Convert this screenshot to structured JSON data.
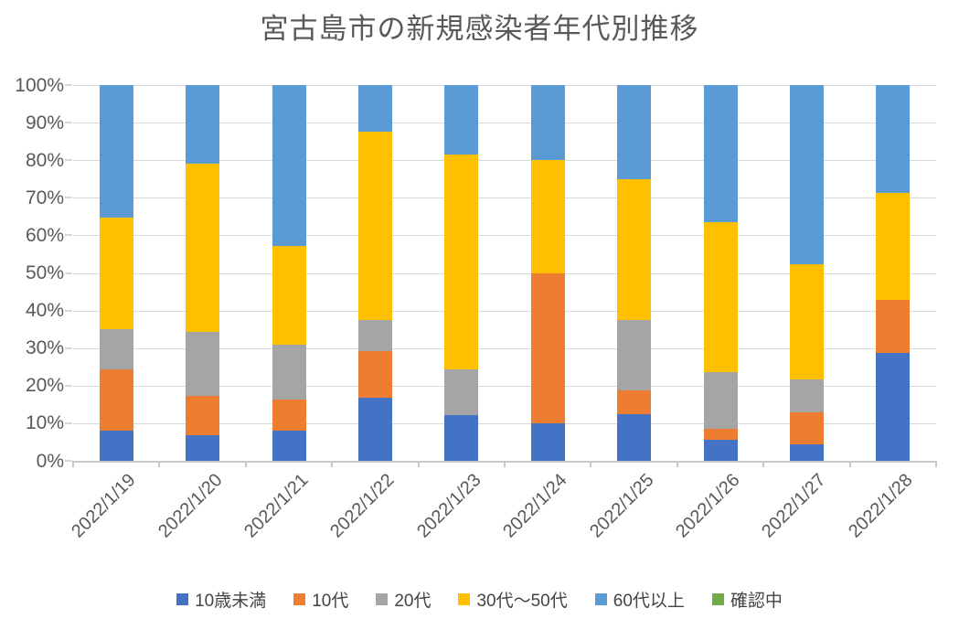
{
  "chart_data": {
    "type": "bar",
    "stacked": true,
    "percent_stacked": true,
    "title": "宮古島市の新規感染者年代別推移",
    "categories": [
      "2022/1/19",
      "2022/1/20",
      "2022/1/21",
      "2022/1/22",
      "2022/1/23",
      "2022/1/24",
      "2022/1/25",
      "2022/1/26",
      "2022/1/27",
      "2022/1/28"
    ],
    "series": [
      {
        "name": "10歳未満",
        "color": "#4472C4",
        "values": [
          8.1,
          6.9,
          8.1,
          16.7,
          12.2,
          10.0,
          12.5,
          5.5,
          4.3,
          28.6
        ]
      },
      {
        "name": "10代",
        "color": "#ED7D31",
        "values": [
          16.2,
          10.3,
          8.3,
          12.5,
          0.0,
          40.0,
          6.3,
          3.0,
          8.7,
          14.3
        ]
      },
      {
        "name": "20代",
        "color": "#A5A5A5",
        "values": [
          10.8,
          17.2,
          14.6,
          8.3,
          12.2,
          0.0,
          18.7,
          15.0,
          8.7,
          0.0
        ]
      },
      {
        "name": "30代〜50代",
        "color": "#FFC000",
        "values": [
          29.7,
          44.8,
          26.3,
          50.0,
          57.2,
          30.0,
          37.5,
          40.0,
          30.5,
          28.5
        ]
      },
      {
        "name": "60代以上",
        "color": "#5B9BD5",
        "values": [
          35.2,
          20.8,
          42.7,
          12.5,
          18.4,
          20.0,
          25.0,
          36.5,
          47.8,
          28.6
        ]
      },
      {
        "name": "確認中",
        "color": "#70AD47",
        "values": [
          0.0,
          0.0,
          0.0,
          0.0,
          0.0,
          0.0,
          0.0,
          0.0,
          0.0,
          0.0
        ]
      }
    ],
    "y_axis": {
      "min": 0,
      "max": 100,
      "tick_step": 10,
      "tick_labels": [
        "0%",
        "10%",
        "20%",
        "30%",
        "40%",
        "50%",
        "60%",
        "70%",
        "80%",
        "90%",
        "100%"
      ]
    },
    "layout": {
      "grid": true,
      "legend_position": "bottom",
      "x_label_rotation_deg": 45,
      "title_color": "#595959",
      "axis_text_color": "#595959",
      "gridline_color": "#D9D9D9"
    }
  }
}
